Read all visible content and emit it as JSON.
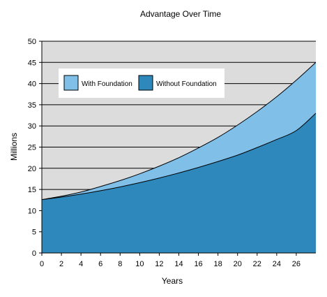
{
  "chart_data": {
    "type": "area",
    "title": "Advantage Over Time",
    "xlabel": "Years",
    "ylabel": "Millions",
    "xlim": [
      0,
      28
    ],
    "ylim": [
      0,
      50
    ],
    "x_ticks": [
      0,
      2,
      4,
      6,
      8,
      10,
      12,
      14,
      16,
      18,
      20,
      22,
      24,
      26
    ],
    "y_ticks": [
      0,
      5,
      10,
      15,
      20,
      25,
      30,
      35,
      40,
      45,
      50
    ],
    "grid": true,
    "legend_position": "top-left",
    "background_color": "#dcdcdc",
    "x": [
      0,
      2,
      4,
      6,
      8,
      10,
      12,
      14,
      16,
      18,
      20,
      22,
      24,
      26,
      28
    ],
    "series": [
      {
        "name": "With Foundation",
        "color": "#7fbfe8",
        "values": [
          12.6,
          13.4,
          14.4,
          15.7,
          17.1,
          18.7,
          20.5,
          22.5,
          24.8,
          27.3,
          30.2,
          33.4,
          36.9,
          40.8,
          45.0
        ]
      },
      {
        "name": "Without Foundation",
        "color": "#2f88bb",
        "values": [
          12.6,
          13.2,
          13.9,
          14.7,
          15.6,
          16.6,
          17.7,
          18.9,
          20.2,
          21.6,
          23.1,
          24.9,
          26.8,
          28.9,
          33.0
        ]
      }
    ]
  }
}
